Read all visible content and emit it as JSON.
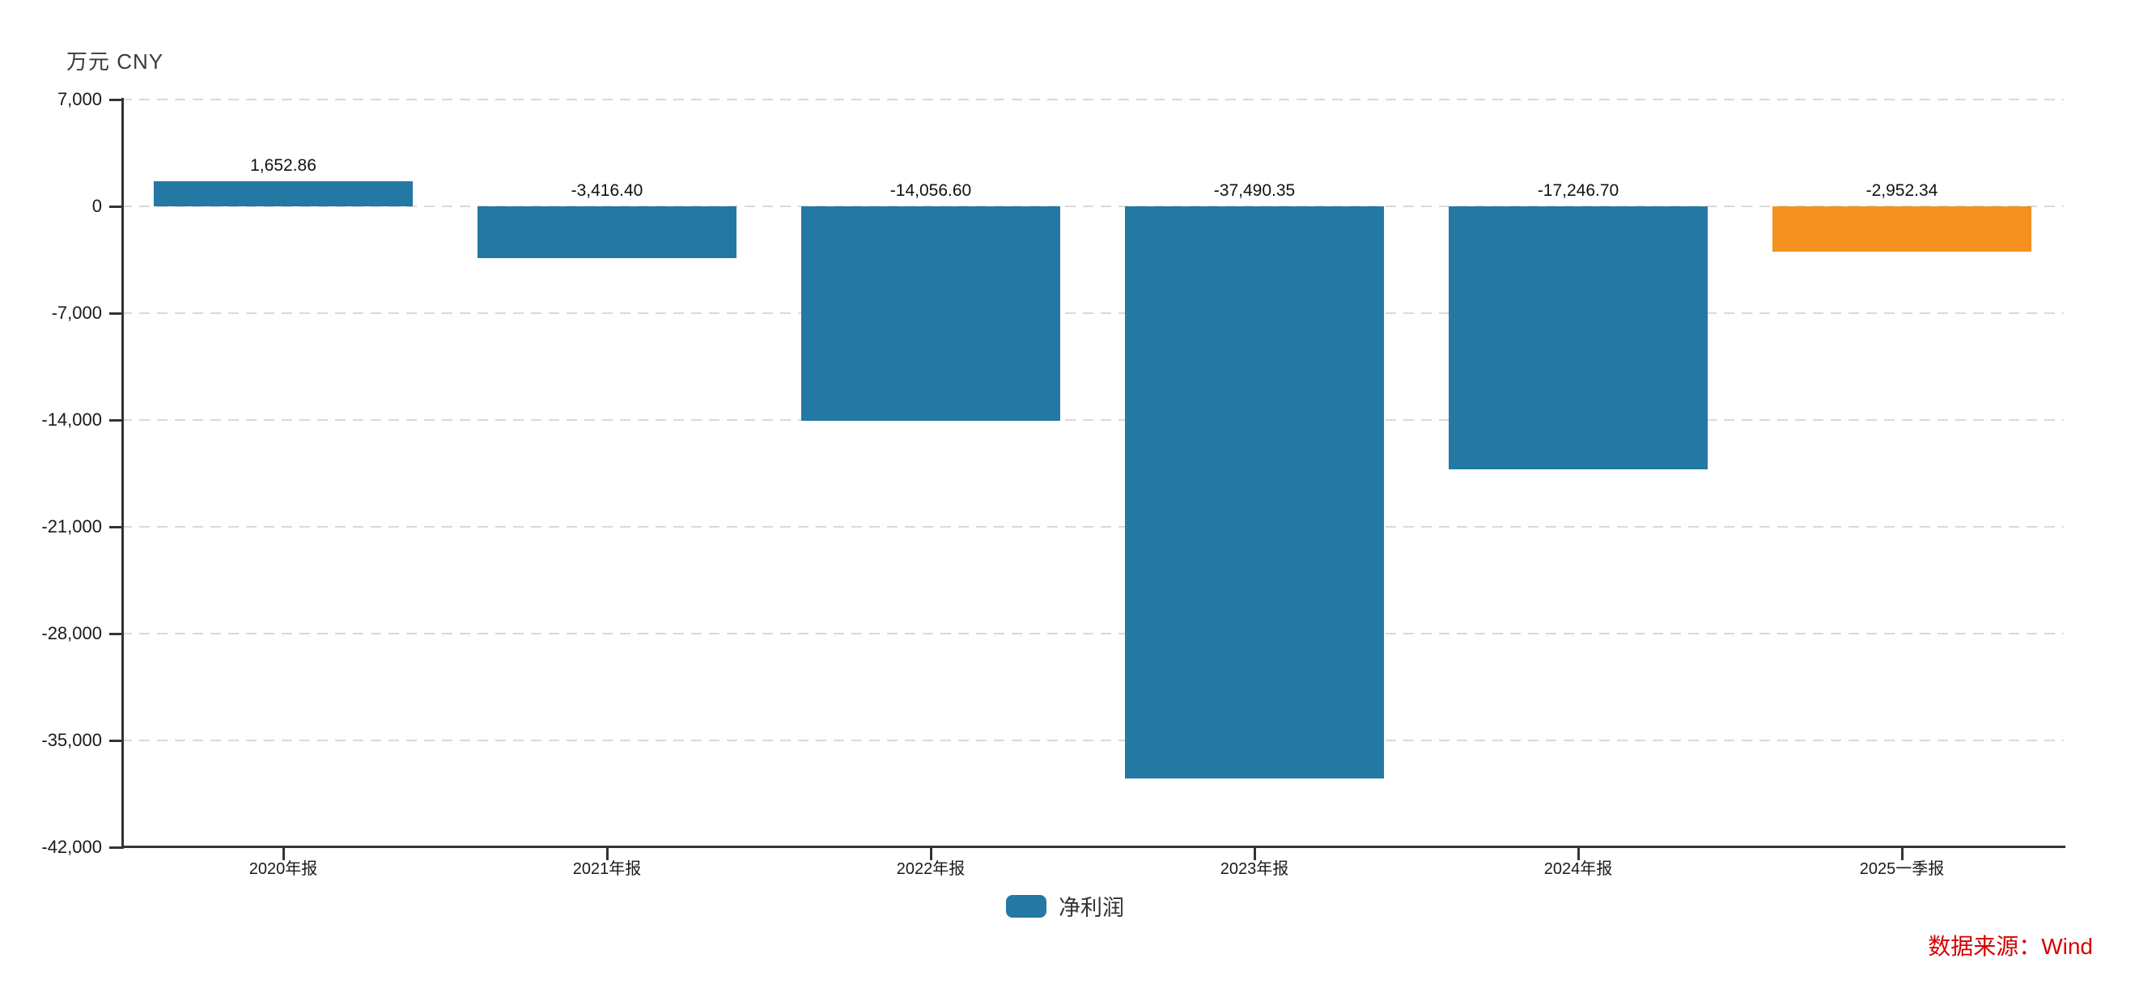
{
  "unit_label": "万元 CNY",
  "legend": {
    "items": [
      {
        "label": "净利润",
        "color": "#2478A4"
      }
    ]
  },
  "source_note": {
    "text": "数据来源：Wind",
    "color": "#D60000"
  },
  "colors": {
    "bar_blue": "#2478A4",
    "bar_orange": "#F5911E",
    "axis": "#333333",
    "grid": "#d9d9d9",
    "text": "#1a1a1a"
  },
  "chart_data": {
    "type": "bar",
    "title": "",
    "unit": "万元 CNY",
    "categories": [
      "2020年报",
      "2021年报",
      "2022年报",
      "2023年报",
      "2024年报",
      "2025一季报"
    ],
    "series": [
      {
        "name": "净利润",
        "values": [
          1652.86,
          -3416.4,
          -14056.6,
          -37490.35,
          -17246.7,
          -2952.34
        ]
      }
    ],
    "point_colors": [
      "#2478A4",
      "#2478A4",
      "#2478A4",
      "#2478A4",
      "#2478A4",
      "#F5911E"
    ],
    "value_labels": [
      "1,652.86",
      "-3,416.40",
      "-14,056.60",
      "-37,490.35",
      "-17,246.70",
      "-2,952.34"
    ],
    "ylim": [
      -42000,
      7000
    ],
    "ytick_interval": 7000,
    "ytick_labels": [
      "7,000",
      "0",
      "-7,000",
      "-14,000",
      "-21,000",
      "-28,000",
      "-35,000",
      "-42,000"
    ],
    "grid": "dashed-horizontal",
    "legend_position": "bottom-center",
    "xlabel": "",
    "ylabel": "万元 CNY"
  }
}
